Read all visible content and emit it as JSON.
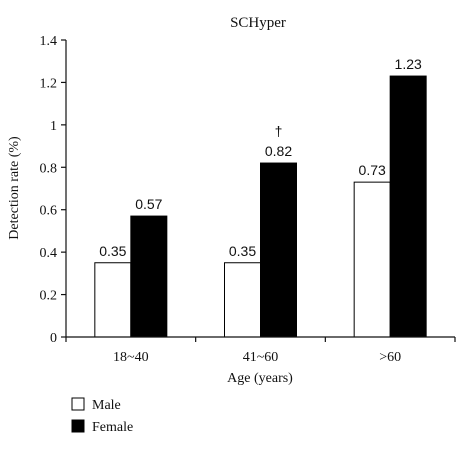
{
  "chart_data": {
    "type": "bar",
    "title": "SCHyper",
    "xlabel": "Age (years)",
    "ylabel": "Detection rate (%)",
    "categories": [
      "18~40",
      "41~60",
      ">60"
    ],
    "ylim": [
      0,
      1.4
    ],
    "yticks": [
      "0",
      "0.2",
      "0.4",
      "0.6",
      "0.8",
      "1",
      "1.2",
      "1.4"
    ],
    "grid": false,
    "legend_position": "bottom-left",
    "series": [
      {
        "name": "Male",
        "values": [
          0.35,
          0.35,
          0.73
        ],
        "labels": [
          "0.35",
          "0.35",
          "0.73"
        ],
        "color": "#ffffff"
      },
      {
        "name": "Female",
        "values": [
          0.57,
          0.82,
          1.23
        ],
        "labels": [
          "0.57",
          "0.82",
          "1.23"
        ],
        "color": "#000000"
      }
    ],
    "annotations": [
      {
        "category": "41~60",
        "series": "Female",
        "text": "†"
      }
    ]
  }
}
